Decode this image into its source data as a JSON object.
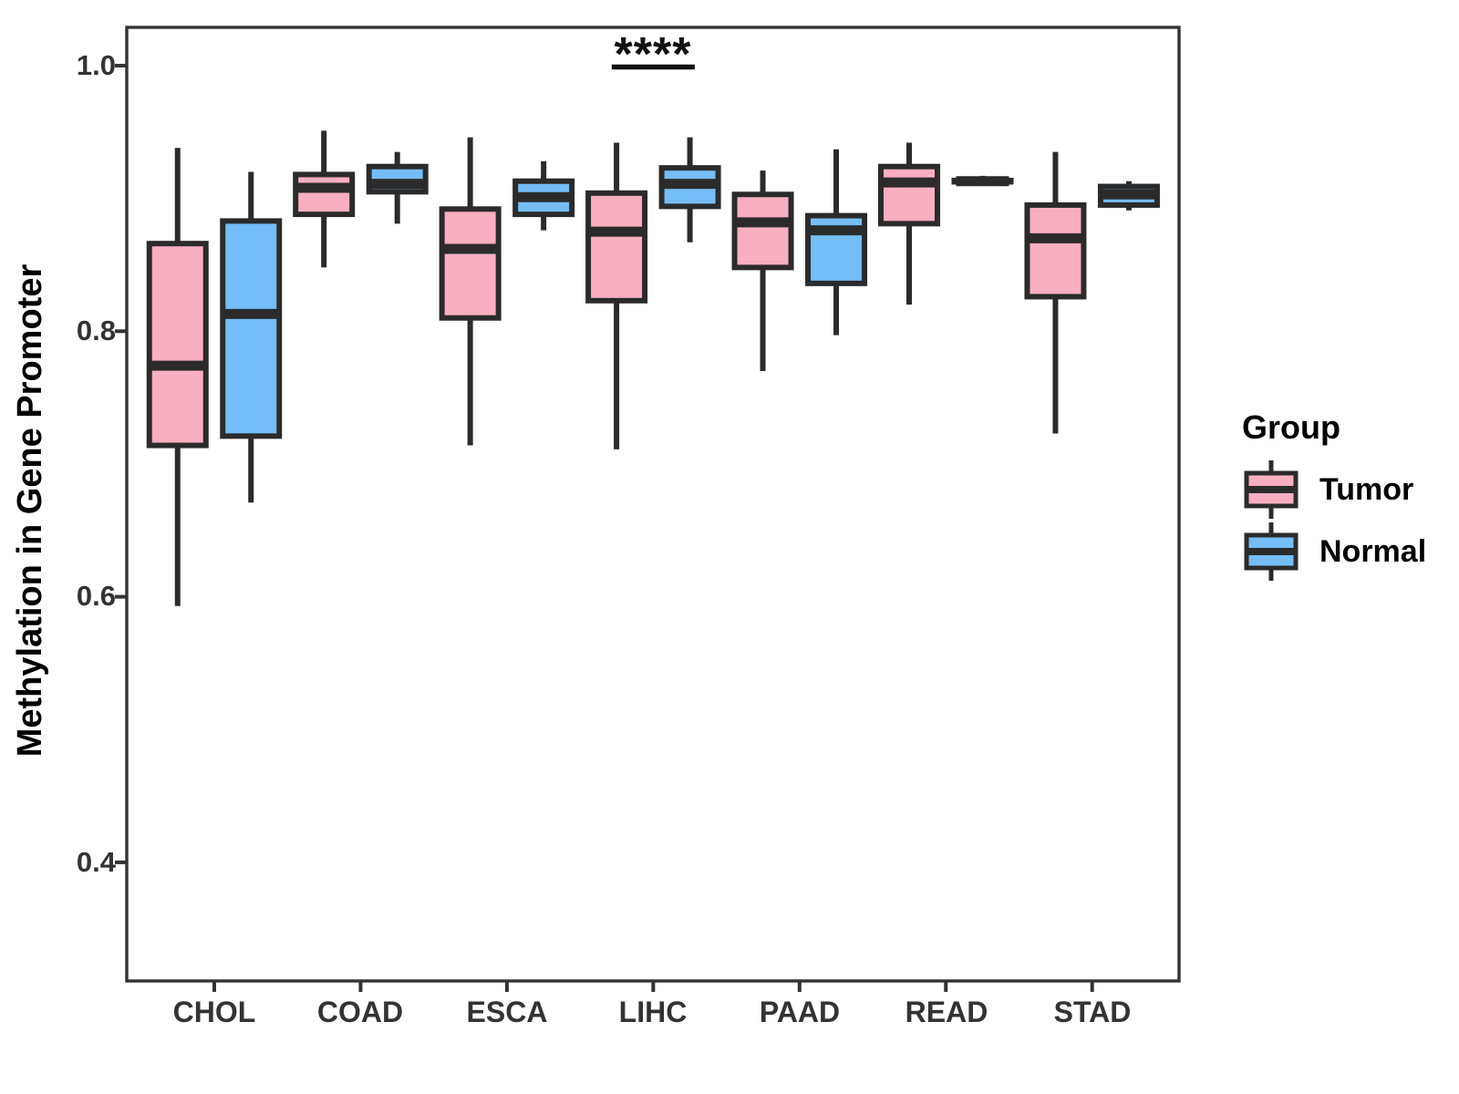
{
  "figure": {
    "background": "#ffffff"
  },
  "chart_data": {
    "type": "boxplot",
    "title": "",
    "xlabel": "",
    "ylabel": "Methylation in Gene Promoter",
    "categories": [
      "CHOL",
      "COAD",
      "ESCA",
      "LIHC",
      "PAAD",
      "READ",
      "STAD"
    ],
    "y_axis": {
      "ticks": [
        {
          "label": "1.0",
          "value": 1.0
        },
        {
          "label": "0.8",
          "value": 0.8
        },
        {
          "label": "0.6",
          "value": 0.6
        },
        {
          "label": "0.4",
          "value": 0.4
        }
      ],
      "range": [
        0.31,
        1.03
      ],
      "grid": false
    },
    "groups": [
      {
        "name": "Tumor",
        "fill": "#FAAEC1"
      },
      {
        "name": "Normal",
        "fill": "#74BDF6"
      }
    ],
    "box_stroke": "#2b2b2b",
    "axis_color": "#333333",
    "boxes": [
      {
        "category": "CHOL",
        "group": "Tumor",
        "min": 0.593,
        "q1": 0.714,
        "median": 0.774,
        "q3": 0.866,
        "max": 0.938
      },
      {
        "category": "CHOL",
        "group": "Normal",
        "min": 0.671,
        "q1": 0.721,
        "median": 0.813,
        "q3": 0.883,
        "max": 0.92
      },
      {
        "category": "COAD",
        "group": "Tumor",
        "min": 0.848,
        "q1": 0.888,
        "median": 0.908,
        "q3": 0.918,
        "max": 0.951
      },
      {
        "category": "COAD",
        "group": "Normal",
        "min": 0.881,
        "q1": 0.905,
        "median": 0.911,
        "q3": 0.924,
        "max": 0.935
      },
      {
        "category": "ESCA",
        "group": "Tumor",
        "min": 0.714,
        "q1": 0.81,
        "median": 0.862,
        "q3": 0.892,
        "max": 0.946
      },
      {
        "category": "ESCA",
        "group": "Normal",
        "min": 0.876,
        "q1": 0.888,
        "median": 0.901,
        "q3": 0.913,
        "max": 0.928
      },
      {
        "category": "LIHC",
        "group": "Tumor",
        "min": 0.711,
        "q1": 0.823,
        "median": 0.875,
        "q3": 0.904,
        "max": 0.942
      },
      {
        "category": "LIHC",
        "group": "Normal",
        "min": 0.867,
        "q1": 0.894,
        "median": 0.911,
        "q3": 0.923,
        "max": 0.946
      },
      {
        "category": "PAAD",
        "group": "Tumor",
        "min": 0.77,
        "q1": 0.848,
        "median": 0.882,
        "q3": 0.903,
        "max": 0.921
      },
      {
        "category": "PAAD",
        "group": "Normal",
        "min": 0.797,
        "q1": 0.836,
        "median": 0.876,
        "q3": 0.887,
        "max": 0.937
      },
      {
        "category": "READ",
        "group": "Tumor",
        "min": 0.82,
        "q1": 0.881,
        "median": 0.912,
        "q3": 0.924,
        "max": 0.942
      },
      {
        "category": "READ",
        "group": "Normal",
        "min": 0.9115,
        "q1": 0.9125,
        "median": 0.913,
        "q3": 0.9135,
        "max": 0.917
      },
      {
        "category": "STAD",
        "group": "Tumor",
        "min": 0.723,
        "q1": 0.826,
        "median": 0.87,
        "q3": 0.895,
        "max": 0.935
      },
      {
        "category": "STAD",
        "group": "Normal",
        "min": 0.891,
        "q1": 0.895,
        "median": 0.903,
        "q3": 0.909,
        "max": 0.913
      }
    ],
    "significance": {
      "label": "****",
      "category": "LIHC"
    },
    "legend": {
      "title": "Group",
      "position": "right",
      "items": [
        {
          "label": "Tumor",
          "fill": "#FAAEC1"
        },
        {
          "label": "Normal",
          "fill": "#74BDF6"
        }
      ]
    }
  }
}
